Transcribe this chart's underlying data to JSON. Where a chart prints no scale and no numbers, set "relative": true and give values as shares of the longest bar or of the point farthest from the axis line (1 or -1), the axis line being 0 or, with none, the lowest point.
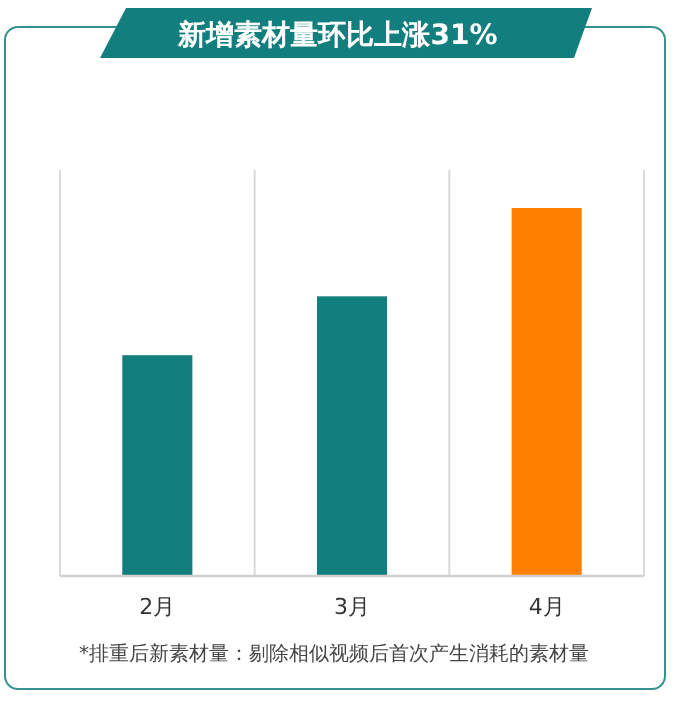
{
  "chart_data": {
    "type": "bar",
    "title": "新增素材量环比上涨31%",
    "categories": [
      "2月",
      "3月",
      "4月"
    ],
    "values": [
      0.6,
      0.76,
      1
    ],
    "colors": [
      "#137e7e",
      "#137e7e",
      "#ff8000"
    ],
    "relative": true,
    "grid": "x",
    "annotations": [
      "*排重后新素材量：剔除相似视频后首次产生消耗的素材量"
    ]
  }
}
